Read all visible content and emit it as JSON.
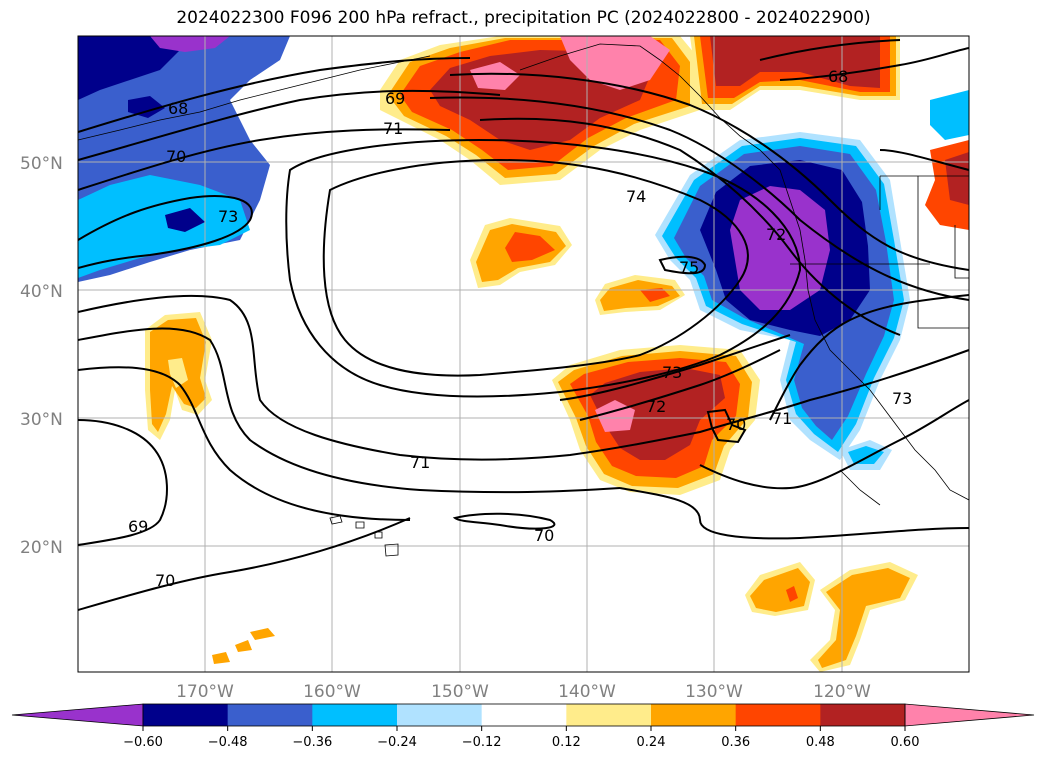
{
  "title": "2024022300 F096 200 hPa refract., precipitation PC (2024022800 - 2024022900)",
  "lat_labels": [
    "50°N",
    "40°N",
    "30°N",
    "20°N"
  ],
  "lon_labels": [
    "170°W",
    "160°W",
    "150°W",
    "140°W",
    "130°W",
    "120°W"
  ],
  "contour_labels": [
    "68",
    "69",
    "70",
    "71",
    "73",
    "74",
    "75",
    "72",
    "73",
    "72",
    "71",
    "70",
    "73",
    "71",
    "69",
    "70",
    "70",
    "68"
  ],
  "colorbar": {
    "ticks": [
      "−0.60",
      "−0.48",
      "−0.36",
      "−0.24",
      "−0.12",
      "0.12",
      "0.24",
      "0.36",
      "0.48",
      "0.60"
    ],
    "colors": [
      "#9932cc",
      "#00008b",
      "#3a5fcd",
      "#00bfff",
      "#b0e2ff",
      "#ffffff",
      "#ffec8b",
      "#ffa500",
      "#ff4500",
      "#b22222",
      "#ff82ab"
    ]
  },
  "palette": {
    "neg_3": "#9932cc",
    "neg_2": "#00008b",
    "neg_1": "#3a5fcd",
    "neg_0": "#00bfff",
    "neg_light": "#b0e2ff",
    "pos_light": "#ffec8b",
    "pos_0": "#ffa500",
    "pos_1": "#ff4500",
    "pos_2": "#b22222",
    "pos_3": "#ff82ab"
  }
}
